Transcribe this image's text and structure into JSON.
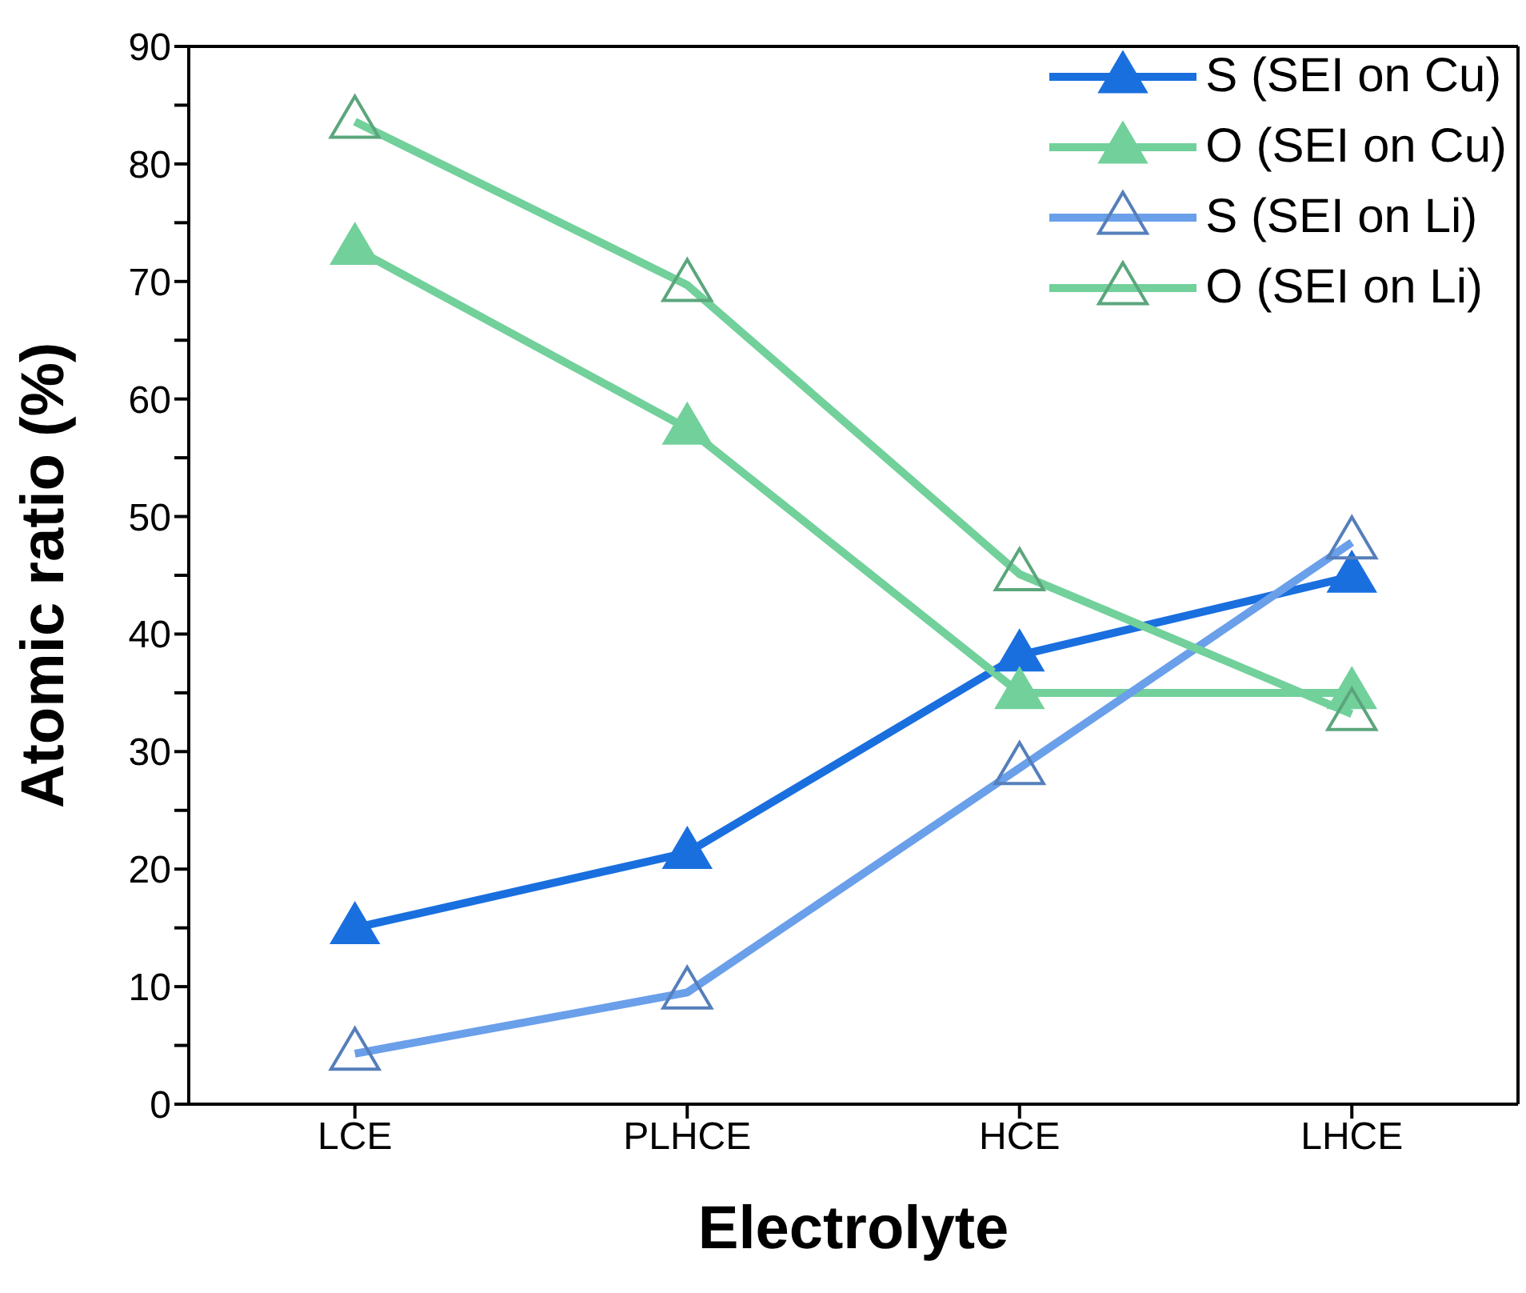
{
  "chart_data": {
    "type": "line",
    "xlabel": "Electrolyte",
    "ylabel": "Atomic ratio (%)",
    "categories": [
      "LCE",
      "PLHCE",
      "HCE",
      "LHCE"
    ],
    "series": [
      {
        "name": "S (SEI on Cu)",
        "color": "#1a6fdf",
        "marker": "triangle",
        "values": [
          15.0,
          21.4,
          38.2,
          44.9
        ]
      },
      {
        "name": "O (SEI on Cu)",
        "color": "#72d09b",
        "marker": "triangle",
        "values": [
          72.8,
          57.5,
          35.0,
          35.0
        ]
      },
      {
        "name": "S (SEI on Li)",
        "color": "#6a9fea",
        "marker": "triangle-open",
        "values": [
          4.3,
          9.5,
          28.6,
          47.8
        ]
      },
      {
        "name": "O (SEI on Li)",
        "color": "#72d09b",
        "marker": "triangle-open",
        "values": [
          83.6,
          69.7,
          45.1,
          33.2
        ]
      }
    ],
    "ylim": [
      0,
      90
    ],
    "yticks": [
      0,
      {
        "value": 5,
        "label": null
      },
      10,
      {
        "value": 15,
        "label": null
      },
      20,
      {
        "value": 25,
        "label": null
      },
      30,
      {
        "value": 35,
        "label": null
      },
      40,
      {
        "value": 45,
        "label": null
      },
      50,
      {
        "value": 55,
        "label": null
      },
      60,
      {
        "value": 65,
        "label": null
      },
      70,
      {
        "value": 75,
        "label": null
      },
      80,
      {
        "value": 85,
        "label": null
      },
      90
    ],
    "grid": false,
    "legend": "top right",
    "line_style": "solid"
  }
}
